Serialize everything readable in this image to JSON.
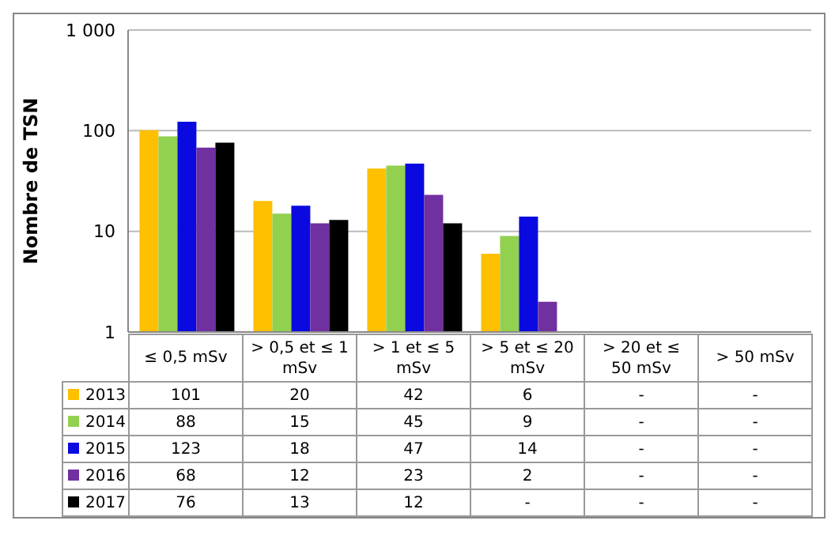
{
  "chart_data": {
    "type": "bar",
    "ylabel": "Nombre de TSN",
    "categories": [
      "≤ 0,5 mSv",
      "> 0,5 et ≤ 1 mSv",
      "> 1 et ≤ 5 mSv",
      "> 5 et ≤ 20 mSv",
      "> 20 et ≤ 50 mSv",
      "> 50 mSv"
    ],
    "series": [
      {
        "name": "2013",
        "color": "#ffc000",
        "values": [
          101,
          20,
          42,
          6,
          null,
          null
        ],
        "value_labels": [
          "101",
          "20",
          "42",
          "6",
          "-",
          "-"
        ]
      },
      {
        "name": "2014",
        "color": "#92d050",
        "values": [
          88,
          15,
          45,
          9,
          null,
          null
        ],
        "value_labels": [
          "88",
          "15",
          "45",
          "9",
          "-",
          "-"
        ]
      },
      {
        "name": "2015",
        "color": "#0a0ae0",
        "values": [
          123,
          18,
          47,
          14,
          null,
          null
        ],
        "value_labels": [
          "123",
          "18",
          "47",
          "14",
          "-",
          "-"
        ]
      },
      {
        "name": "2016",
        "color": "#7030a0",
        "values": [
          68,
          12,
          23,
          2,
          null,
          null
        ],
        "value_labels": [
          "68",
          "12",
          "23",
          "2",
          "-",
          "-"
        ]
      },
      {
        "name": "2017",
        "color": "#000000",
        "values": [
          76,
          13,
          12,
          null,
          null,
          null
        ],
        "value_labels": [
          "76",
          "13",
          "12",
          "-",
          "-",
          "-"
        ]
      }
    ],
    "log": true,
    "ylim": [
      1,
      1000
    ],
    "yticks": [
      1,
      10,
      100,
      {
        "value": 1000,
        "label": "1 000"
      }
    ],
    "grid": "y",
    "legend": "bottom"
  }
}
